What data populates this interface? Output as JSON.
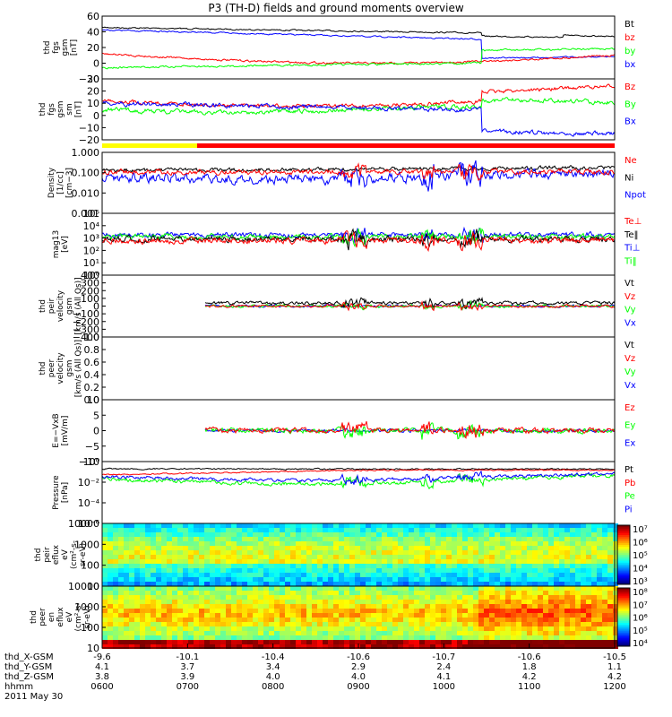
{
  "title": "P3 (TH-D) fields and ground moments overview",
  "colors": {
    "black": "#000000",
    "red": "#ff0000",
    "green": "#00ff00",
    "blue": "#0000ff",
    "yellow": "#ffff00"
  },
  "chart_data": [
    {
      "type": "line",
      "id": "fgs",
      "ylabel": [
        "thd",
        "fgs",
        "gsm",
        "[nT]"
      ],
      "ylim": [
        -20,
        60
      ],
      "ticks": [
        "60",
        "40",
        "20",
        "0",
        "−20"
      ],
      "legend": [
        {
          "name": "Bt",
          "color": "#000000"
        },
        {
          "name": "bz",
          "color": "#ff0000"
        },
        {
          "name": "by",
          "color": "#00ff00"
        },
        {
          "name": "bx",
          "color": "#0000ff"
        }
      ]
    },
    {
      "type": "line",
      "id": "fgs_dsl",
      "ylabel": [
        "thd",
        "fgs",
        "gsm",
        "sm",
        "[nT]"
      ],
      "ylim": [
        -25,
        30
      ],
      "ticks": [
        "30",
        "20",
        "10",
        "0",
        "−10",
        "−20"
      ],
      "legend": [
        {
          "name": "Bz",
          "color": "#ff0000"
        },
        {
          "name": "By",
          "color": "#00ff00"
        },
        {
          "name": "Bx",
          "color": "#0000ff"
        }
      ]
    },
    {
      "type": "line",
      "id": "density",
      "ylabel": [
        "Density",
        "[1/cc]",
        "[cm−3]"
      ],
      "log": true,
      "ticks": [
        "1.000",
        "0.100",
        "0.010",
        "0.001"
      ],
      "legend": [
        {
          "name": "Ne",
          "color": "#ff0000"
        },
        {
          "name": "Ni",
          "color": "#000000"
        },
        {
          "name": "Npot",
          "color": "#0000ff"
        }
      ]
    },
    {
      "type": "line",
      "id": "temp",
      "ylabel": [
        "mag13",
        "[eV]"
      ],
      "log": true,
      "ticks": [
        "10⁵",
        "10⁴",
        "10³",
        "10²",
        "10¹",
        "10⁰"
      ],
      "legend": [
        {
          "name": "Te⊥",
          "color": "#ff0000"
        },
        {
          "name": "Te‖",
          "color": "#000000"
        },
        {
          "name": "Ti⊥",
          "color": "#0000ff"
        },
        {
          "name": "Ti‖",
          "color": "#00ff00"
        }
      ]
    },
    {
      "type": "line",
      "id": "peir_vel",
      "ylabel": [
        "thd",
        "peir",
        "velocity",
        "gsm",
        "[km/s (All Qs)]"
      ],
      "ylim": [
        -400,
        400
      ],
      "ticks": [
        "400",
        "300",
        "200",
        "100",
        "0",
        "−100",
        "−200",
        "−300",
        "−400"
      ],
      "legend": [
        {
          "name": "Vt",
          "color": "#000000"
        },
        {
          "name": "Vz",
          "color": "#ff0000"
        },
        {
          "name": "Vy",
          "color": "#00ff00"
        },
        {
          "name": "Vx",
          "color": "#0000ff"
        }
      ]
    },
    {
      "type": "line",
      "id": "peer_vel",
      "ylabel": [
        "thd",
        "peer",
        "velocity",
        "gsm",
        "[km/s (All Qs)]"
      ],
      "ylim": [
        0,
        1
      ],
      "ticks": [
        "1.0",
        "0.8",
        "0.6",
        "0.4",
        "0.2",
        "0.0"
      ],
      "legend": [
        {
          "name": "Vt",
          "color": "#000000"
        },
        {
          "name": "Vz",
          "color": "#ff0000"
        },
        {
          "name": "Vy",
          "color": "#00ff00"
        },
        {
          "name": "Vx",
          "color": "#0000ff"
        }
      ]
    },
    {
      "type": "line",
      "id": "efield",
      "ylabel": [
        "E=−VxB",
        "[mV/m]"
      ],
      "ylim": [
        -10,
        10
      ],
      "ticks": [
        "10",
        "5",
        "0",
        "−5",
        "−10"
      ],
      "legend": [
        {
          "name": "Ez",
          "color": "#ff0000"
        },
        {
          "name": "Ey",
          "color": "#00ff00"
        },
        {
          "name": "Ex",
          "color": "#0000ff"
        }
      ]
    },
    {
      "type": "line",
      "id": "pressure",
      "ylabel": [
        "Pressure",
        "[nPa]"
      ],
      "log": true,
      "ticks": [
        "10⁰",
        "10⁻²",
        "10⁻⁴",
        "10⁻⁶"
      ],
      "legend": [
        {
          "name": "Pt",
          "color": "#000000"
        },
        {
          "name": "Pb",
          "color": "#ff0000"
        },
        {
          "name": "Pe",
          "color": "#00ff00"
        },
        {
          "name": "Pi",
          "color": "#0000ff"
        }
      ]
    },
    {
      "type": "heatmap",
      "id": "peir_eflux",
      "ylabel": [
        "thd",
        "peir",
        "eflux",
        "eV",
        "(cm²-s-",
        "sr-eV)"
      ],
      "ticks": [
        "10000",
        "1000",
        "100",
        "10"
      ],
      "colorbar": [
        "10⁷",
        "10⁶",
        "10⁵",
        "10⁴",
        "10³"
      ]
    },
    {
      "type": "heatmap",
      "id": "peer_eflux",
      "ylabel": [
        "thd",
        "peer",
        "en",
        "eflux",
        "eV",
        "(cm²-s-",
        "sr-eV)"
      ],
      "ticks": [
        "10000",
        "1000",
        "100",
        "10"
      ],
      "colorbar": [
        "10⁸",
        "10⁷",
        "10⁶",
        "10⁵",
        "10⁴"
      ]
    }
  ],
  "xaxis": {
    "rows": [
      {
        "label": "thd_X-GSM",
        "values": [
          "-9.6",
          "-10.1",
          "-10.4",
          "-10.6",
          "-10.7",
          "-10.6",
          "-10.5"
        ]
      },
      {
        "label": "thd_Y-GSM",
        "values": [
          "4.1",
          "3.7",
          "3.4",
          "2.9",
          "2.4",
          "1.8",
          "1.1"
        ]
      },
      {
        "label": "thd_Z-GSM",
        "values": [
          "3.8",
          "3.9",
          "4.0",
          "4.0",
          "4.1",
          "4.2",
          "4.2"
        ]
      },
      {
        "label": "hhmm",
        "values": [
          "0600",
          "0700",
          "0800",
          "0900",
          "1000",
          "1100",
          "1200"
        ]
      }
    ],
    "date": "2011 May 30"
  }
}
